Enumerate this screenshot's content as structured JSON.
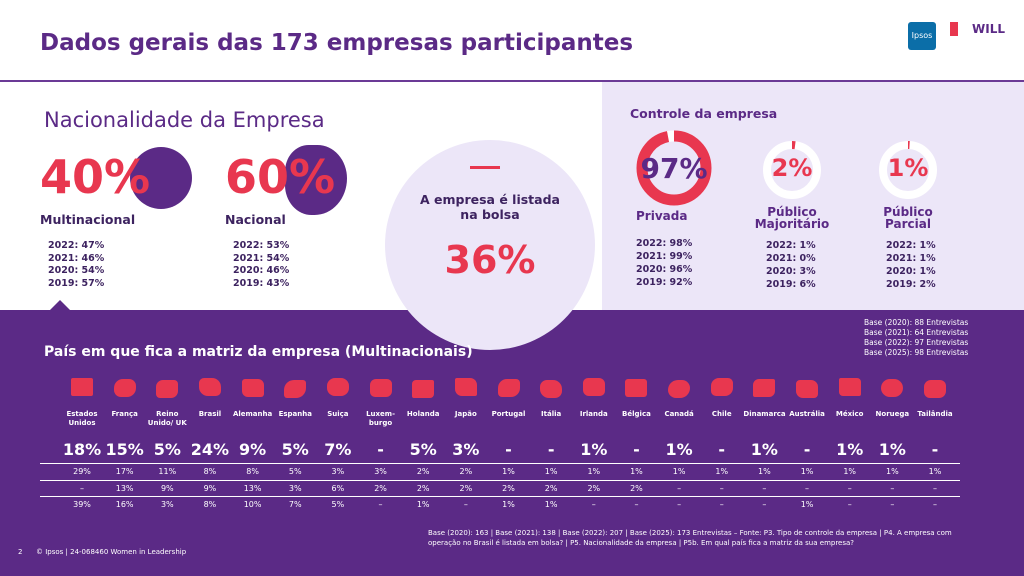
{
  "header": {
    "title": "Dados gerais das 173 empresas participantes",
    "logo_ipsos": "Ipsos",
    "logo_will": "WILL"
  },
  "nacionalidade": {
    "title": "Nacionalidade da Empresa",
    "items": [
      {
        "pct": "40%",
        "label": "Multinacional",
        "history": [
          "2022: 47%",
          "2021: 46%",
          "2020: 54%",
          "2019: 57%"
        ]
      },
      {
        "pct": "60%",
        "label": "Nacional",
        "history": [
          "2022: 53%",
          "2021: 54%",
          "2020: 46%",
          "2019: 43%"
        ]
      }
    ]
  },
  "bolsa": {
    "label": "A empresa é listada na bolsa",
    "value": "36%"
  },
  "controle": {
    "title": "Controle da empresa",
    "items": [
      {
        "value": 97,
        "label": "97%",
        "name": "Privada",
        "history": [
          "2022: 98%",
          "2021: 99%",
          "2020: 96%",
          "2019: 92%"
        ]
      },
      {
        "value": 2,
        "label": "2%",
        "name": "Público Majoritário",
        "history": [
          "2022: 1%",
          "2021: 0%",
          "2020: 3%",
          "2019: 6%"
        ]
      },
      {
        "value": 1,
        "label": "1%",
        "name": "Público Parcial",
        "history": [
          "2022: 1%",
          "2021: 1%",
          "2020: 1%",
          "2019: 2%"
        ]
      }
    ]
  },
  "bases": [
    "Base (2020): 88 Entrevistas",
    "Base (2021): 64 Entrevistas",
    "Base (2022): 97 Entrevistas",
    "Base (2025): 98 Entrevistas"
  ],
  "paises": {
    "title": "País em que fica a matriz da empresa (Multinacionais)",
    "countries": [
      "Estados Unidos",
      "França",
      "Reino Unido/ UK",
      "Brasil",
      "Alemanha",
      "Espanha",
      "Suiça",
      "Luxem-burgo",
      "Holanda",
      "Japão",
      "Portugal",
      "Itália",
      "Irlanda",
      "Bélgica",
      "Canadá",
      "Chile",
      "Dinamarca",
      "Austrália",
      "México",
      "Noruega",
      "Tailândia"
    ],
    "main": [
      "18%",
      "15%",
      "5%",
      "24%",
      "9%",
      "5%",
      "7%",
      "-",
      "5%",
      "3%",
      "-",
      "-",
      "1%",
      "-",
      "1%",
      "-",
      "1%",
      "-",
      "1%",
      "1%",
      "-"
    ],
    "rows": [
      [
        "29%",
        "17%",
        "11%",
        "8%",
        "8%",
        "5%",
        "3%",
        "3%",
        "2%",
        "2%",
        "1%",
        "1%",
        "1%",
        "1%",
        "1%",
        "1%",
        "1%",
        "1%",
        "1%",
        "1%",
        "1%"
      ],
      [
        "–",
        "13%",
        "9%",
        "9%",
        "13%",
        "3%",
        "6%",
        "2%",
        "2%",
        "2%",
        "2%",
        "2%",
        "2%",
        "2%",
        "–",
        "–",
        "–",
        "–",
        "–",
        "–",
        "–"
      ],
      [
        "39%",
        "16%",
        "3%",
        "8%",
        "10%",
        "7%",
        "5%",
        "–",
        "1%",
        "–",
        "1%",
        "1%",
        "–",
        "–",
        "–",
        "–",
        "–",
        "1%",
        "–",
        "–",
        "–"
      ]
    ]
  },
  "footer": {
    "page": "2",
    "copyright": "© Ipsos | 24-068460 Women in Leadership",
    "note": "Base (2020): 163 | Base (2021): 138 | Base (2022): 207 | Base (2025): 173 Entrevistas – Fonte: P3. Tipo de controle da empresa | P4. A empresa com operação no Brasil é listada em bolsa? | P5. Nacionalidade da empresa | P5b. Em qual país fica a matriz da sua empresa?"
  }
}
